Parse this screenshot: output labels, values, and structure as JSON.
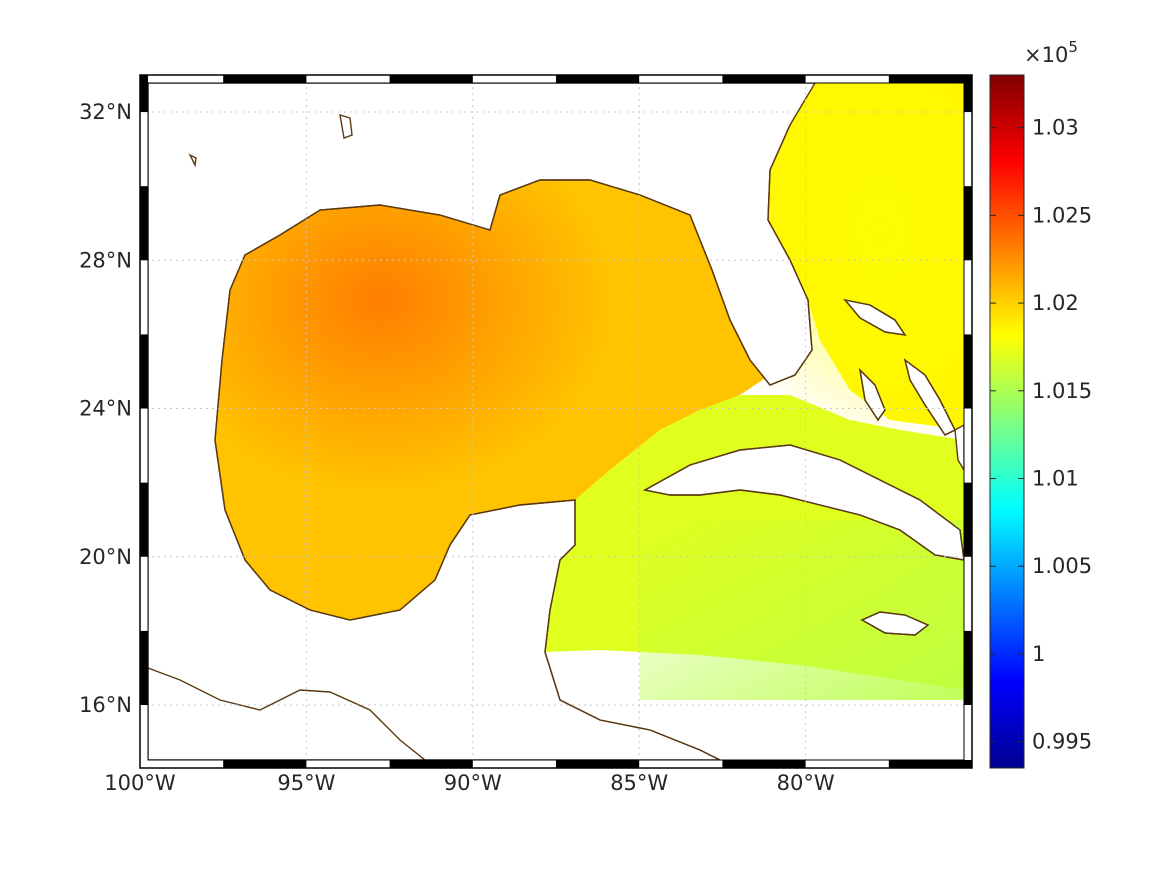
{
  "map": {
    "lon_range": [
      -100,
      -75
    ],
    "lat_range": [
      14.3,
      33
    ],
    "lon_ticks": [
      {
        "value": -100,
        "label": "100°W"
      },
      {
        "value": -95,
        "label": "95°W"
      },
      {
        "value": -90,
        "label": "90°W"
      },
      {
        "value": -85,
        "label": "85°W"
      },
      {
        "value": -80,
        "label": "80°W"
      }
    ],
    "lat_ticks": [
      {
        "value": 16,
        "label": "16°N"
      },
      {
        "value": 20,
        "label": "20°N"
      },
      {
        "value": 24,
        "label": "24°N"
      },
      {
        "value": 28,
        "label": "28°N"
      },
      {
        "value": 32,
        "label": "32°N"
      }
    ],
    "grid": "dotted",
    "colors": {
      "coastline": "#5a3a12",
      "land": "#ffffff",
      "frame": "#000000"
    }
  },
  "colorbar": {
    "exponent_label": "×10",
    "exponent_power": "5",
    "range": [
      0.9935,
      1.033
    ],
    "colormap": "jet",
    "ticks": [
      {
        "value": 0.995,
        "label": "0.995"
      },
      {
        "value": 1.0,
        "label": "1"
      },
      {
        "value": 1.005,
        "label": "1.005"
      },
      {
        "value": 1.01,
        "label": "1.01"
      },
      {
        "value": 1.015,
        "label": "1.015"
      },
      {
        "value": 1.02,
        "label": "1.02"
      },
      {
        "value": 1.025,
        "label": "1.025"
      },
      {
        "value": 1.03,
        "label": "1.03"
      }
    ]
  },
  "field": {
    "westGulf": 1.0235,
    "centralGulf": 1.0205,
    "eastGulf": 1.019,
    "atlantic": 1.0185,
    "caribbean": 1.017,
    "southeastCaribbean": 1.0155
  }
}
